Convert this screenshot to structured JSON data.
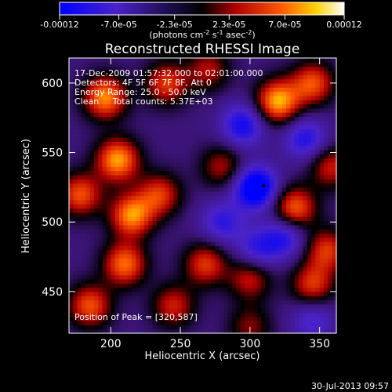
{
  "chart_data": {
    "type": "heatmap",
    "title": "Reconstructed RHESSI Image",
    "xlabel": "Heliocentric X (arcsec)",
    "ylabel": "Heliocentric Y (arcsec)",
    "xlim": [
      170,
      362
    ],
    "ylim": [
      420,
      618
    ],
    "x_ticks": [
      200,
      250,
      300,
      350
    ],
    "y_ticks": [
      450,
      500,
      550,
      600
    ],
    "colorbar": {
      "colormap": "black-blue-purple-red-orange-yellow-white",
      "range": [
        -0.00012,
        0.00012
      ],
      "tick_values": [
        -0.00012,
        -7e-05,
        -2.3e-05,
        2.3e-05,
        7e-05,
        0.00012
      ],
      "tick_labels": [
        "-0.00012",
        "-7.0e-05",
        "-2.3e-05",
        "2.3e-05",
        "7.0e-05",
        "0.00012"
      ],
      "unit_prefix": "(photons cm",
      "unit_exp1": "-2",
      "unit_mid": " s",
      "unit_exp2": "-1",
      "unit_mid2": " asec",
      "unit_exp3": "-2",
      "unit_suffix": ")"
    },
    "annotations": {
      "time_range": "17-Dec-2009 01:57:32.000 to 02:01:00.000",
      "detectors": "Detectors: 4F 5F 6F 7F 8F, Att 0",
      "energy_range": "Energy Range: 25.0 - 50.0 keV",
      "method": "Clean     Total counts: 5.37E+03",
      "peak": "Position of Peak = [320,587]"
    },
    "sources": [
      {
        "x": 196,
        "y": 590,
        "amp": 0.00011
      },
      {
        "x": 205,
        "y": 545,
        "amp": 0.000115
      },
      {
        "x": 215,
        "y": 505,
        "amp": 0.00011
      },
      {
        "x": 210,
        "y": 470,
        "amp": 0.0001
      },
      {
        "x": 240,
        "y": 600,
        "amp": 8e-05
      },
      {
        "x": 235,
        "y": 520,
        "amp": 8e-05
      },
      {
        "x": 178,
        "y": 520,
        "amp": 9e-05
      },
      {
        "x": 185,
        "y": 440,
        "amp": 9e-05
      },
      {
        "x": 245,
        "y": 440,
        "amp": 7e-05
      },
      {
        "x": 270,
        "y": 610,
        "amp": 6e-05
      },
      {
        "x": 320,
        "y": 587,
        "amp": 0.00012
      },
      {
        "x": 345,
        "y": 600,
        "amp": 9e-05
      },
      {
        "x": 332,
        "y": 510,
        "amp": 0.0001
      },
      {
        "x": 355,
        "y": 480,
        "amp": 8e-05
      },
      {
        "x": 268,
        "y": 470,
        "amp": 8e-05
      },
      {
        "x": 300,
        "y": 460,
        "amp": 7e-05
      },
      {
        "x": 345,
        "y": 455,
        "amp": 8e-05
      },
      {
        "x": 280,
        "y": 540,
        "amp": 6e-05
      },
      {
        "x": 358,
        "y": 540,
        "amp": 7e-05
      },
      {
        "x": 300,
        "y": 425,
        "amp": 5e-05
      },
      {
        "x": 304,
        "y": 525,
        "amp": -0.00012
      },
      {
        "x": 295,
        "y": 570,
        "amp": -8e-05
      },
      {
        "x": 340,
        "y": 560,
        "amp": -7e-05
      },
      {
        "x": 325,
        "y": 490,
        "amp": -7e-05
      },
      {
        "x": 305,
        "y": 480,
        "amp": -6e-05
      },
      {
        "x": 280,
        "y": 500,
        "amp": -6e-05
      },
      {
        "x": 345,
        "y": 430,
        "amp": -5e-05
      }
    ],
    "background": -3e-05
  },
  "timestamp": "30-Jul-2013 09:57"
}
